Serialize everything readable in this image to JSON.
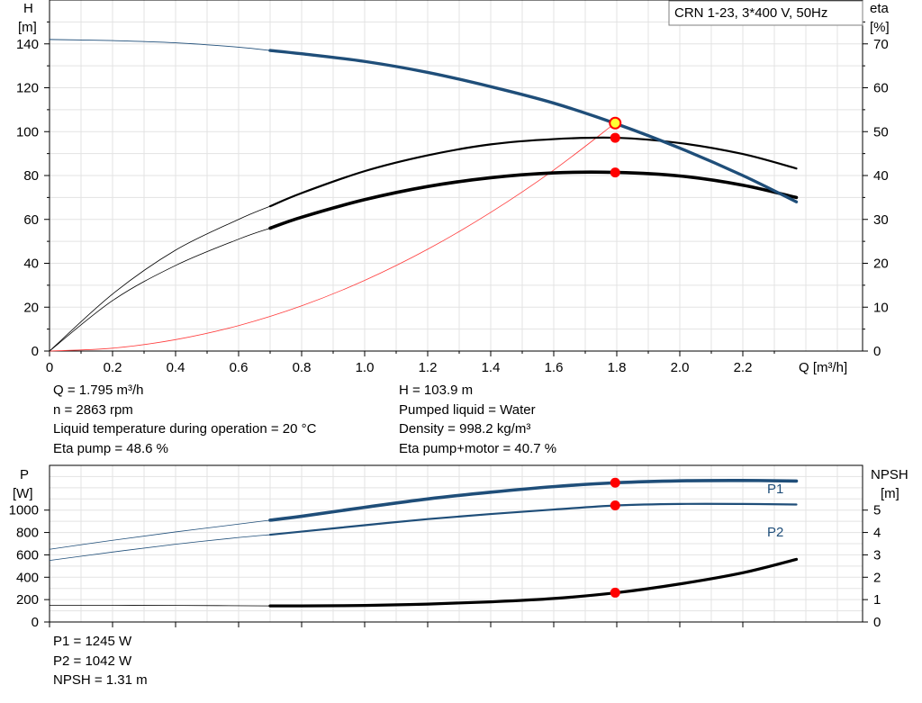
{
  "chart_data": [
    {
      "type": "line",
      "title": "CRN 1-23, 3*400 V, 50Hz",
      "xlabel": "Q [m³/h]",
      "ylabel_left": [
        "H",
        "[m]"
      ],
      "ylabel_right": [
        "eta",
        "[%]"
      ],
      "xlim": [
        0,
        2.58
      ],
      "ylim_left": [
        0,
        160
      ],
      "ylim_right": [
        0,
        80
      ],
      "x_ticks": [
        "0",
        "0.2",
        "0.4",
        "0.6",
        "0.8",
        "1.0",
        "1.2",
        "1.4",
        "1.6",
        "1.8",
        "2.0",
        "2.2"
      ],
      "y_ticks_left": [
        "0",
        "20",
        "40",
        "60",
        "80",
        "100",
        "120",
        "140"
      ],
      "y_ticks_right": [
        "0",
        "10",
        "20",
        "30",
        "40",
        "50",
        "60",
        "70"
      ],
      "grid": true,
      "series": [
        {
          "key": "H",
          "axis": "left",
          "color": "#1f4e79",
          "x": [
            0,
            0.2,
            0.4,
            0.6,
            0.7,
            0.8,
            1.0,
            1.2,
            1.4,
            1.6,
            1.8,
            2.0,
            2.2,
            2.37
          ],
          "y": [
            142,
            141.5,
            140.5,
            138.5,
            137,
            135.5,
            132,
            127,
            120.5,
            113,
            103.5,
            92.5,
            80,
            68
          ]
        },
        {
          "key": "eta_pump",
          "axis": "right",
          "color": "#000000",
          "x": [
            0,
            0.2,
            0.4,
            0.6,
            0.7,
            0.8,
            1.0,
            1.2,
            1.4,
            1.6,
            1.8,
            2.0,
            2.2,
            2.37
          ],
          "y": [
            0,
            13,
            23,
            30,
            33,
            36,
            41,
            44.6,
            47.1,
            48.3,
            48.6,
            47.4,
            44.9,
            41.6
          ]
        },
        {
          "key": "eta_pump_motor",
          "axis": "right",
          "color": "#000000",
          "x": [
            0,
            0.2,
            0.4,
            0.6,
            0.7,
            0.8,
            1.0,
            1.2,
            1.4,
            1.6,
            1.8,
            2.0,
            2.2,
            2.37
          ],
          "y": [
            0,
            11.5,
            19.5,
            25.5,
            28,
            30.5,
            34.5,
            37.5,
            39.5,
            40.6,
            40.7,
            39.9,
            37.8,
            35
          ]
        },
        {
          "key": "system_curve",
          "axis": "left",
          "color": "#ff3b3b",
          "x": [
            0,
            0.2,
            0.4,
            0.6,
            0.8,
            1.0,
            1.2,
            1.4,
            1.6,
            1.795
          ],
          "y": [
            0,
            1.3,
            5.2,
            11.6,
            20.6,
            32.2,
            46.4,
            63.2,
            82.5,
            103.9
          ]
        }
      ],
      "operating_point": {
        "q": 1.795,
        "h": 103.9,
        "eta_pump": 48.6,
        "eta_pump_motor": 40.7
      }
    },
    {
      "type": "line",
      "xlim": [
        0,
        2.58
      ],
      "ylabel_left": [
        "P",
        "[W]"
      ],
      "ylabel_right": [
        "NPSH",
        "[m]"
      ],
      "ylim_left": [
        0,
        1400
      ],
      "ylim_right": [
        0,
        7
      ],
      "y_ticks_left": [
        "0",
        "200",
        "400",
        "600",
        "800",
        "1000"
      ],
      "y_ticks_right": [
        "0",
        "1",
        "2",
        "3",
        "4",
        "5"
      ],
      "grid": true,
      "series": [
        {
          "key": "P1",
          "name": "P1",
          "axis": "left",
          "color": "#1f4e79",
          "x": [
            0,
            0.2,
            0.4,
            0.6,
            0.7,
            0.8,
            1.0,
            1.2,
            1.4,
            1.6,
            1.8,
            2.0,
            2.2,
            2.37
          ],
          "y": [
            650,
            730,
            805,
            875,
            910,
            945,
            1025,
            1100,
            1160,
            1210,
            1245,
            1262,
            1265,
            1260
          ]
        },
        {
          "key": "P2",
          "name": "P2",
          "axis": "left",
          "color": "#1f4e79",
          "x": [
            0,
            0.2,
            0.4,
            0.6,
            0.7,
            0.8,
            1.0,
            1.2,
            1.4,
            1.6,
            1.8,
            2.0,
            2.2,
            2.37
          ],
          "y": [
            550,
            625,
            695,
            755,
            780,
            808,
            865,
            920,
            965,
            1005,
            1042,
            1055,
            1055,
            1050
          ]
        },
        {
          "key": "NPSH",
          "axis": "right",
          "color": "#000000",
          "x": [
            0,
            0.2,
            0.4,
            0.7,
            0.8,
            1.0,
            1.2,
            1.4,
            1.6,
            1.8,
            2.0,
            2.2,
            2.37
          ],
          "y": [
            0.75,
            0.75,
            0.74,
            0.72,
            0.72,
            0.74,
            0.8,
            0.9,
            1.05,
            1.31,
            1.7,
            2.2,
            2.8
          ]
        }
      ],
      "operating_point": {
        "q": 1.795,
        "P1": 1245,
        "P2": 1042,
        "NPSH": 1.31
      }
    }
  ],
  "info_top_left": [
    "Q = 1.795 m³/h",
    "n = 2863 rpm",
    "Liquid temperature during operation = 20 °C",
    "Eta pump = 48.6 %"
  ],
  "info_top_right": [
    "H = 103.9 m",
    "Pumped liquid = Water",
    "Density = 998.2 kg/m³",
    "Eta pump+motor = 40.7 %"
  ],
  "info_bottom": [
    "P1 = 1245 W",
    "P2 = 1042 W",
    "NPSH = 1.31 m"
  ],
  "colors": {
    "pump_curve": "#1f4e79",
    "system_curve": "#ff3b3b",
    "marker": "#ff0000",
    "marker_highlight": "#ffff33",
    "grid": "#e3e3e3"
  }
}
